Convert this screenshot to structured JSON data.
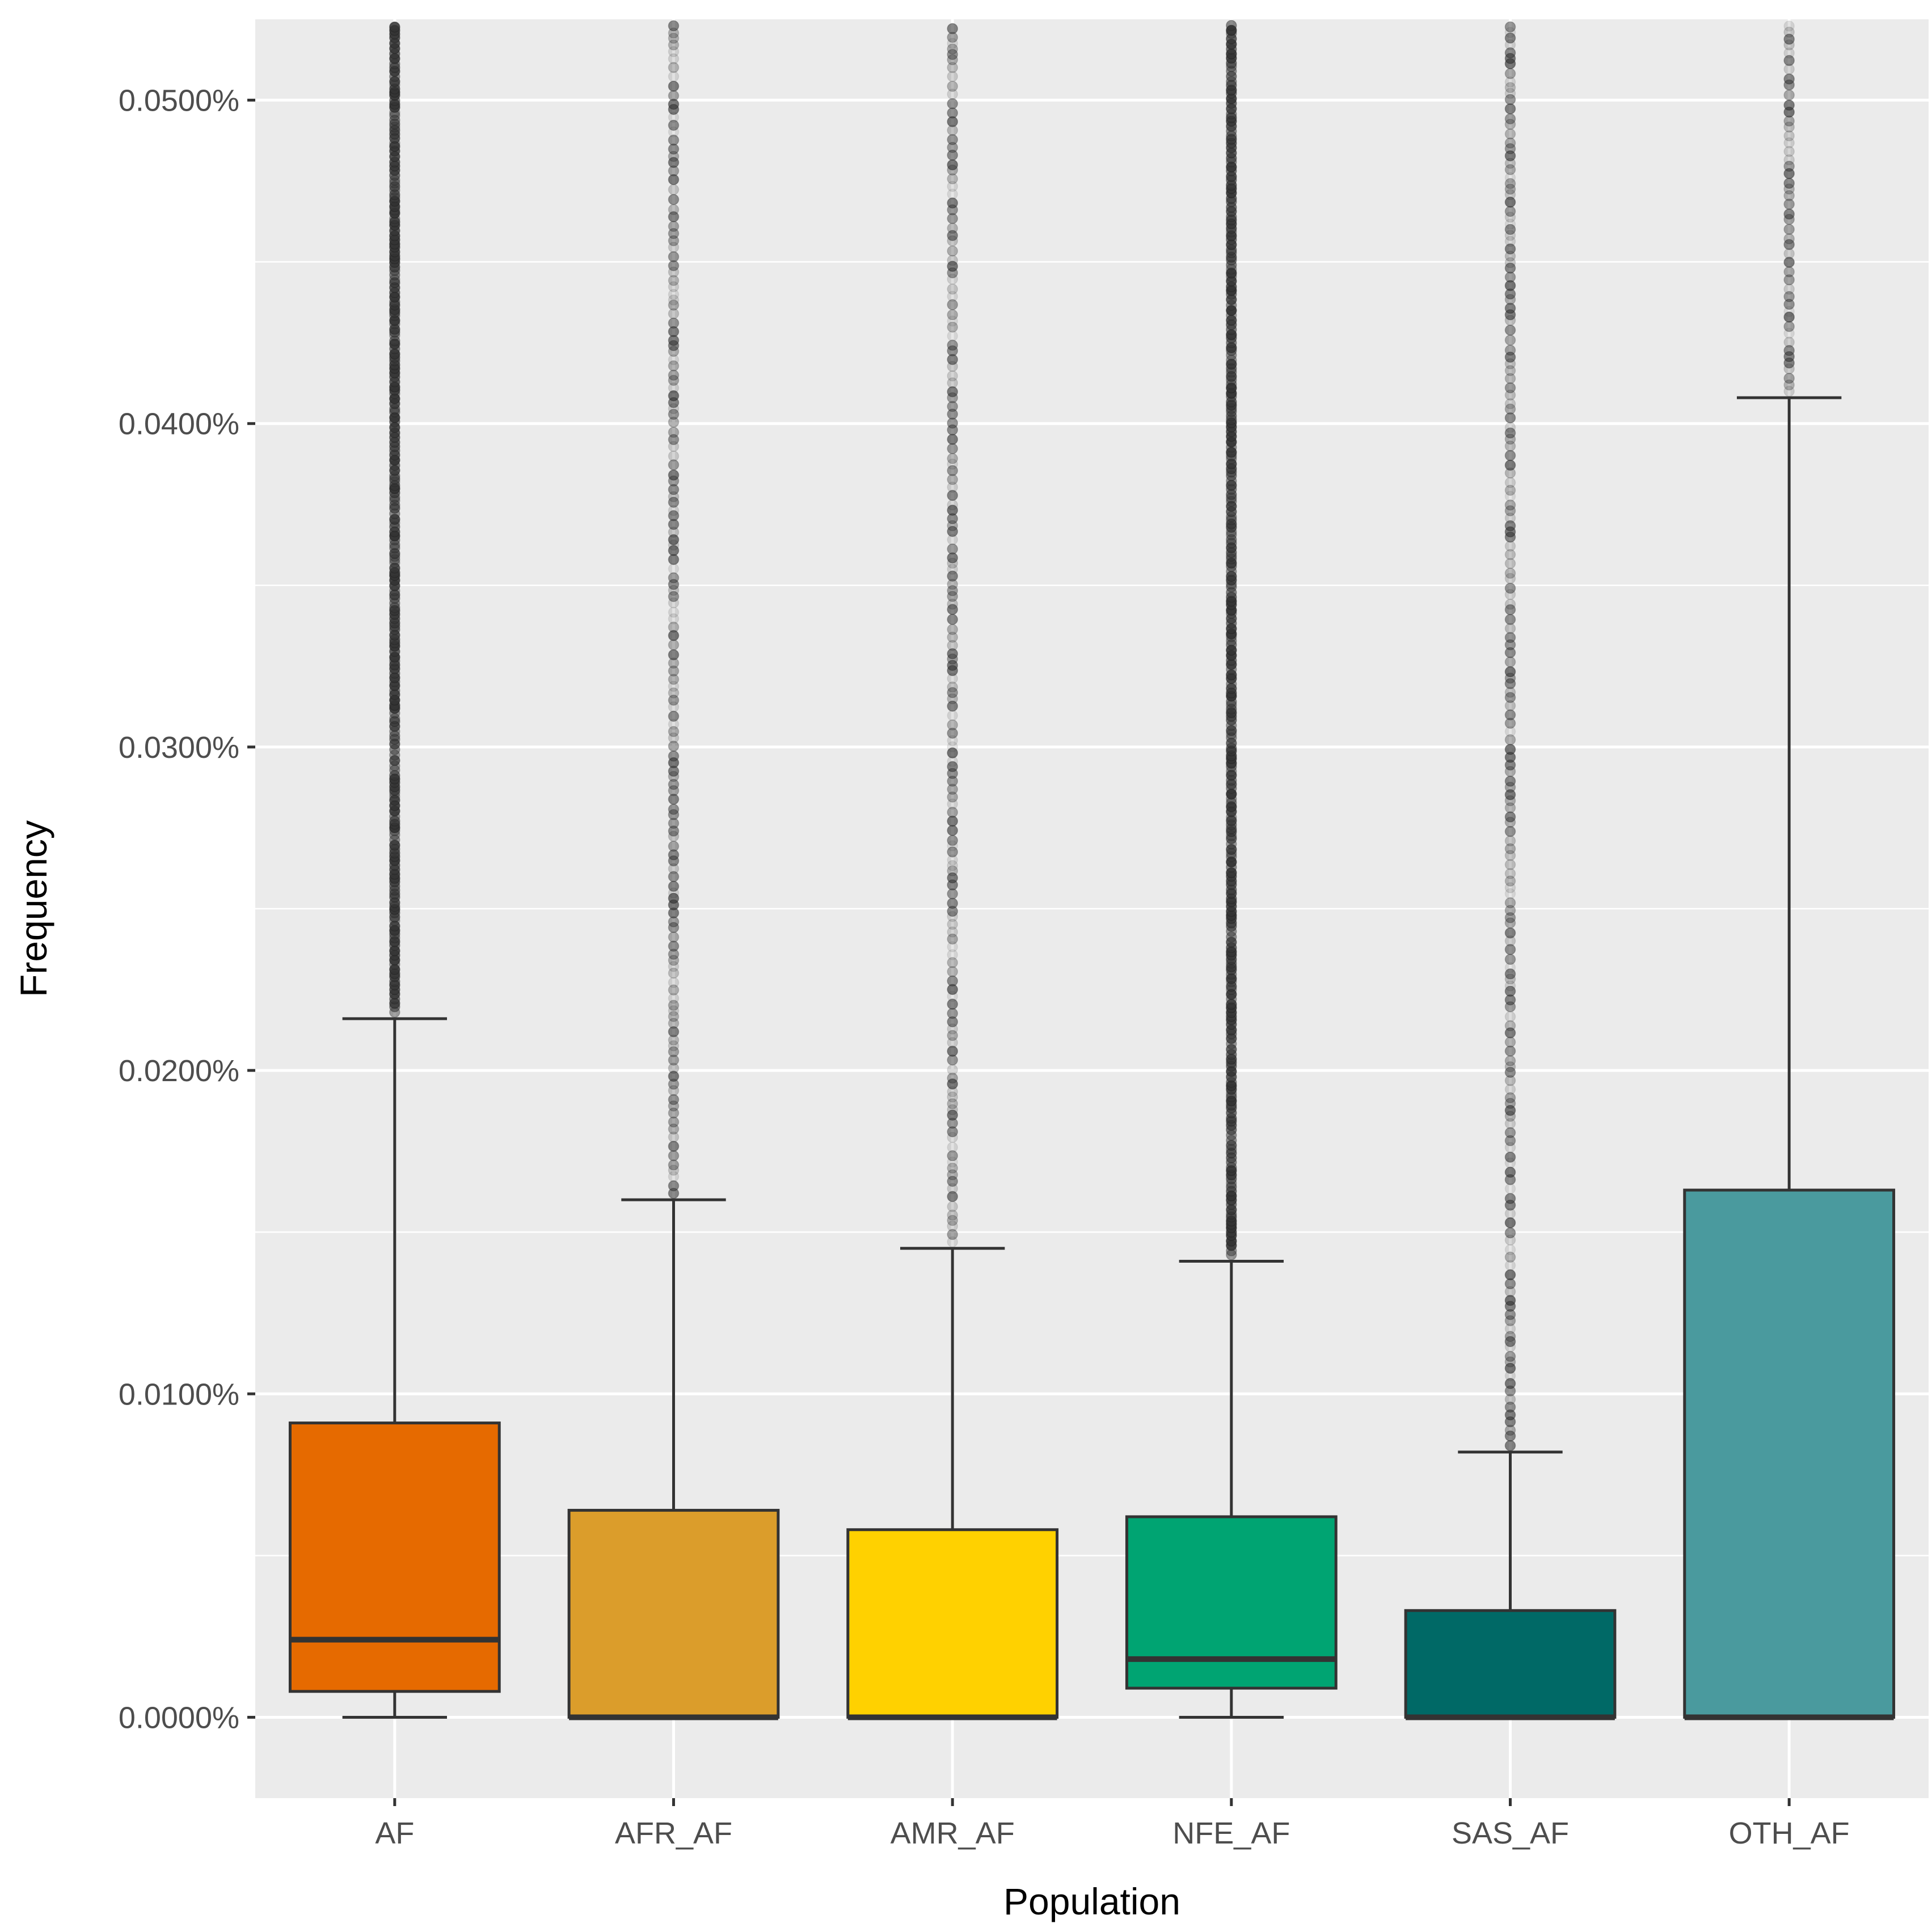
{
  "chart_data": {
    "type": "boxplot",
    "title": "",
    "xlabel": "Population",
    "ylabel": "Frequency",
    "ylim": [
      -0.0025,
      0.0525
    ],
    "ytick_values": [
      0,
      0.01,
      0.02,
      0.03,
      0.04,
      0.05
    ],
    "ytick_labels": [
      "0.0000%",
      "0.0100%",
      "0.0200%",
      "0.0300%",
      "0.0400%",
      "0.0500%"
    ],
    "categories": [
      "AF",
      "AFR_AF",
      "AMR_AF",
      "NFE_AF",
      "SAS_AF",
      "OTH_AF"
    ],
    "boxes": [
      {
        "name": "AF",
        "color": "#E66A00",
        "whisker_low": 0,
        "q1": 0.0008,
        "median": 0.0024,
        "q3": 0.0091,
        "whisker_high": 0.0216,
        "outliers_from": 0.0218,
        "outliers_to": 0.0525
      },
      {
        "name": "AFR_AF",
        "color": "#DB9D2B",
        "whisker_low": 0,
        "q1": 0,
        "median": 0,
        "q3": 0.0064,
        "whisker_high": 0.016,
        "outliers_from": 0.0162,
        "outliers_to": 0.0525
      },
      {
        "name": "AMR_AF",
        "color": "#FFD100",
        "whisker_low": 0,
        "q1": 0,
        "median": 0,
        "q3": 0.0058,
        "whisker_high": 0.0145,
        "outliers_from": 0.0147,
        "outliers_to": 0.0525
      },
      {
        "name": "NFE_AF",
        "color": "#00A472",
        "whisker_low": 0,
        "q1": 0.0009,
        "median": 0.0018,
        "q3": 0.0062,
        "whisker_high": 0.0141,
        "outliers_from": 0.0143,
        "outliers_to": 0.0525
      },
      {
        "name": "SAS_AF",
        "color": "#006966",
        "whisker_low": 0,
        "q1": 0,
        "median": 0,
        "q3": 0.0033,
        "whisker_high": 0.0082,
        "outliers_from": 0.0084,
        "outliers_to": 0.0525
      },
      {
        "name": "OTH_AF",
        "color": "#4A9A9E",
        "whisker_low": 0,
        "q1": 0,
        "median": 0,
        "q3": 0.0163,
        "whisker_high": 0.0408,
        "outliers_from": 0.041,
        "outliers_to": 0.0525
      }
    ],
    "panel_background": "#EBEBEB",
    "grid": true
  }
}
